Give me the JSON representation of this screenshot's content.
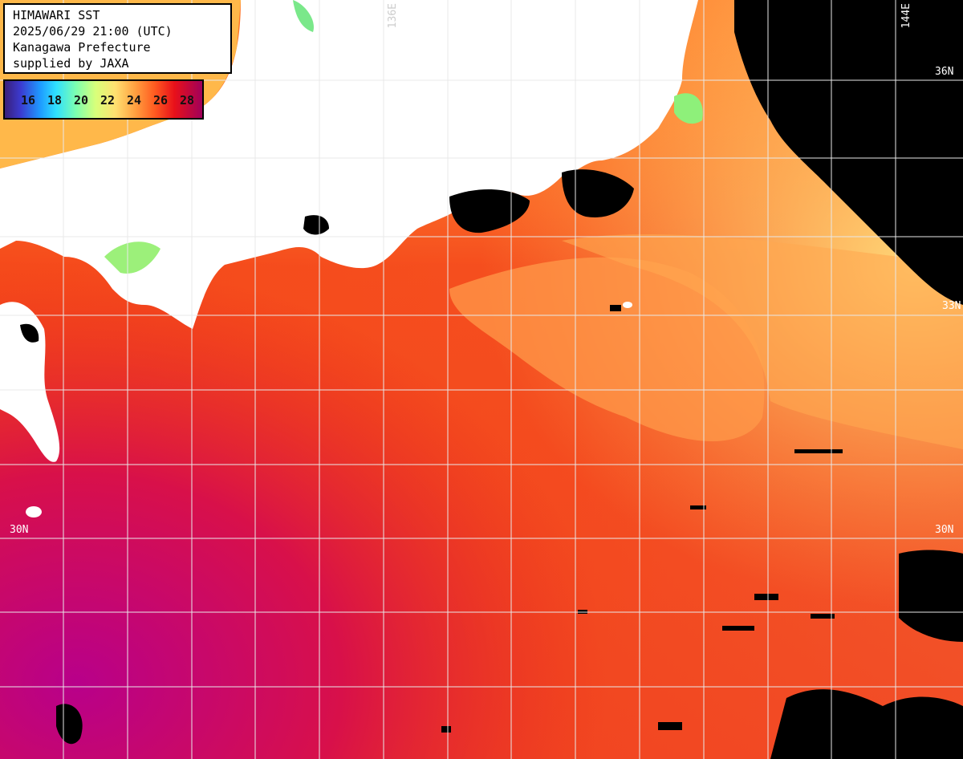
{
  "info": {
    "line1": "HIMAWARI SST",
    "line2": "2025/06/29 21:00 (UTC)",
    "line3": "Kanagawa Prefecture",
    "line4": "supplied by JAXA"
  },
  "legend": {
    "values": [
      "16",
      "18",
      "20",
      "22",
      "24",
      "26",
      "28"
    ]
  },
  "grid_labels": {
    "lon_136": "136E",
    "lon_144": "144E",
    "lat_36": "36N",
    "lat_33": "33N",
    "lat_30_left": "30N",
    "lat_30_right": "30N"
  },
  "colors": {
    "land": "#ffffff",
    "no_data": "#000000",
    "sst_warm": "#ff3010",
    "sst_hot": "#c8005a",
    "sst_cool": "#ffb040",
    "grid": "#e8e8e8"
  }
}
